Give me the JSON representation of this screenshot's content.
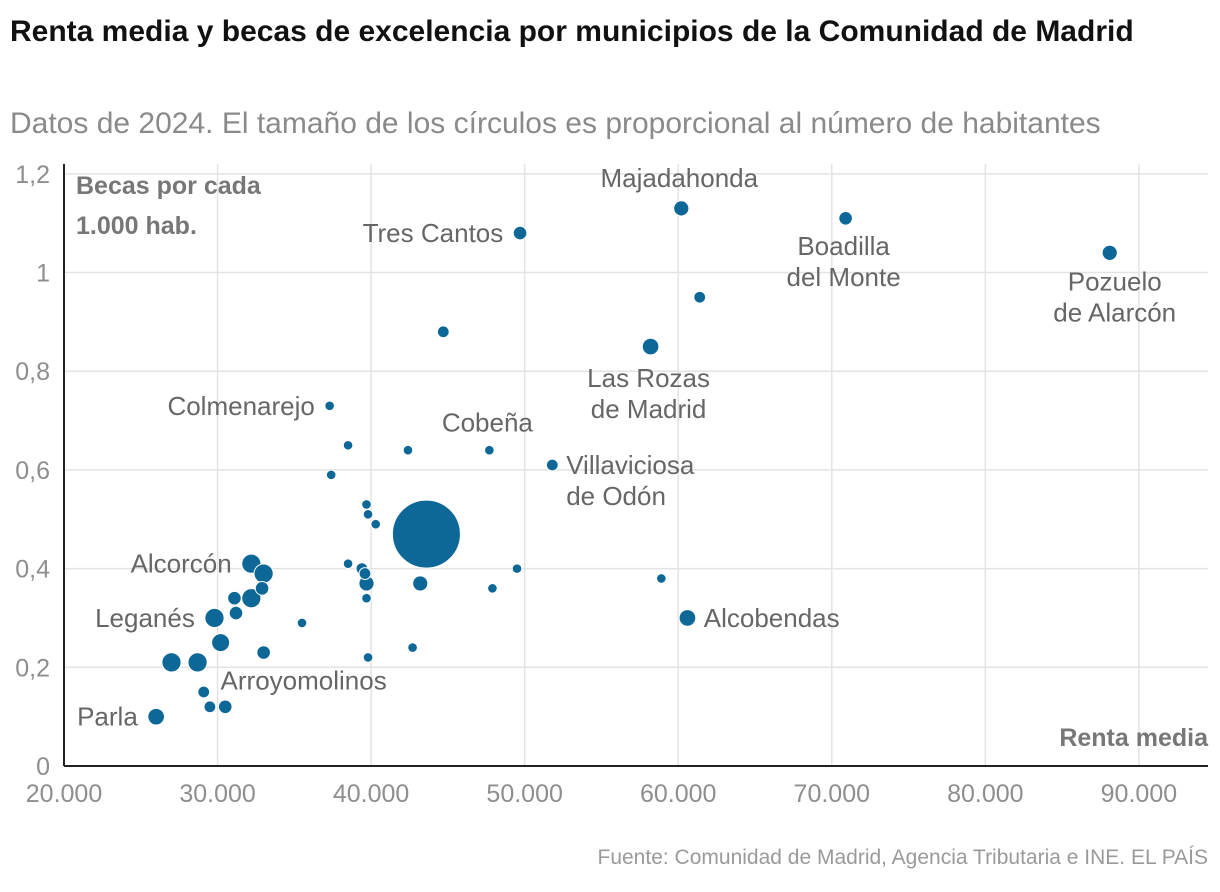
{
  "header": {
    "title": "Renta media y becas de excelencia por municipios de la Comunidad de Madrid",
    "subtitle": "Datos de 2024. El tamaño de los círculos es proporcional al número de habitantes"
  },
  "footer": {
    "source": "Fuente: Comunidad de Madrid, Agencia Tributaria e INE. EL PAÍS"
  },
  "colors": {
    "point": "#0d6797",
    "grid": "#e3e3e3",
    "axis": "#222222"
  },
  "chart_data": {
    "type": "scatter",
    "title": "Renta media y becas de excelencia por municipios de la Comunidad de Madrid",
    "subtitle": "Datos de 2024. El tamaño de los círculos es proporcional al número de habitantes",
    "xlabel": "Renta media",
    "ylabel_lines": [
      "Becas por cada",
      "1.000 hab."
    ],
    "xlim": [
      20000,
      94500
    ],
    "ylim": [
      0,
      1.22
    ],
    "xticks": [
      {
        "value": 20000,
        "label": "20.000"
      },
      {
        "value": 30000,
        "label": "30.000"
      },
      {
        "value": 40000,
        "label": "40.000"
      },
      {
        "value": 50000,
        "label": "50.000"
      },
      {
        "value": 60000,
        "label": "60.000"
      },
      {
        "value": 70000,
        "label": "70.000"
      },
      {
        "value": 80000,
        "label": "80.000"
      },
      {
        "value": 90000,
        "label": "90.000"
      }
    ],
    "yticks": [
      {
        "value": 0,
        "label": "0"
      },
      {
        "value": 0.2,
        "label": "0,2"
      },
      {
        "value": 0.4,
        "label": "0,4"
      },
      {
        "value": 0.6,
        "label": "0,6"
      },
      {
        "value": 0.8,
        "label": "0,8"
      },
      {
        "value": 1,
        "label": "1"
      },
      {
        "value": 1.2,
        "label": "1,2"
      }
    ],
    "grid": true,
    "points": [
      {
        "x": 43600,
        "y": 0.47,
        "pop_rel": 1.0
      },
      {
        "x": 88100,
        "y": 1.04,
        "pop_rel": 0.05,
        "label": "Pozuelo\nde Alarcón",
        "label_pos": "below-right"
      },
      {
        "x": 60200,
        "y": 1.13,
        "pop_rel": 0.05,
        "label": "Majadahonda",
        "label_pos": "above"
      },
      {
        "x": 70900,
        "y": 1.11,
        "pop_rel": 0.04,
        "label": "Boadilla\ndel Monte",
        "label_pos": "below-left"
      },
      {
        "x": 49700,
        "y": 1.08,
        "pop_rel": 0.04,
        "label": "Tres Cantos",
        "label_pos": "left"
      },
      {
        "x": 61400,
        "y": 0.95,
        "pop_rel": 0.03
      },
      {
        "x": 44700,
        "y": 0.88,
        "pop_rel": 0.03
      },
      {
        "x": 58200,
        "y": 0.85,
        "pop_rel": 0.06,
        "label": "Las Rozas\nde Madrid",
        "label_pos": "below"
      },
      {
        "x": 37300,
        "y": 0.73,
        "pop_rel": 0.02,
        "label": "Colmenarejo",
        "label_pos": "left"
      },
      {
        "x": 38500,
        "y": 0.65,
        "pop_rel": 0.02
      },
      {
        "x": 42400,
        "y": 0.64,
        "pop_rel": 0.02
      },
      {
        "x": 47700,
        "y": 0.64,
        "pop_rel": 0.02,
        "label": "Cobeña",
        "label_pos": "above"
      },
      {
        "x": 51800,
        "y": 0.61,
        "pop_rel": 0.03,
        "label": "Villaviciosa\nde Odón",
        "label_pos": "right"
      },
      {
        "x": 37400,
        "y": 0.59,
        "pop_rel": 0.02
      },
      {
        "x": 39700,
        "y": 0.53,
        "pop_rel": 0.02
      },
      {
        "x": 39800,
        "y": 0.51,
        "pop_rel": 0.02
      },
      {
        "x": 40300,
        "y": 0.49,
        "pop_rel": 0.02
      },
      {
        "x": 32200,
        "y": 0.41,
        "pop_rel": 0.08,
        "label": "Alcorcón",
        "label_pos": "left"
      },
      {
        "x": 33000,
        "y": 0.39,
        "pop_rel": 0.08
      },
      {
        "x": 38500,
        "y": 0.41,
        "pop_rel": 0.02
      },
      {
        "x": 39400,
        "y": 0.4,
        "pop_rel": 0.03
      },
      {
        "x": 39600,
        "y": 0.39,
        "pop_rel": 0.03
      },
      {
        "x": 49500,
        "y": 0.4,
        "pop_rel": 0.02
      },
      {
        "x": 58900,
        "y": 0.38,
        "pop_rel": 0.02
      },
      {
        "x": 39700,
        "y": 0.37,
        "pop_rel": 0.05
      },
      {
        "x": 43200,
        "y": 0.37,
        "pop_rel": 0.05
      },
      {
        "x": 32900,
        "y": 0.36,
        "pop_rel": 0.04
      },
      {
        "x": 31100,
        "y": 0.34,
        "pop_rel": 0.04
      },
      {
        "x": 32200,
        "y": 0.34,
        "pop_rel": 0.08
      },
      {
        "x": 39700,
        "y": 0.34,
        "pop_rel": 0.02
      },
      {
        "x": 47900,
        "y": 0.36,
        "pop_rel": 0.02
      },
      {
        "x": 31200,
        "y": 0.31,
        "pop_rel": 0.04
      },
      {
        "x": 29800,
        "y": 0.3,
        "pop_rel": 0.08,
        "label": "Leganés",
        "label_pos": "left"
      },
      {
        "x": 35500,
        "y": 0.29,
        "pop_rel": 0.02
      },
      {
        "x": 60600,
        "y": 0.3,
        "pop_rel": 0.06,
        "label": "Alcobendas",
        "label_pos": "right"
      },
      {
        "x": 30200,
        "y": 0.25,
        "pop_rel": 0.07
      },
      {
        "x": 33000,
        "y": 0.23,
        "pop_rel": 0.04,
        "label": "Arroyomolinos",
        "label_pos": "below-right"
      },
      {
        "x": 42700,
        "y": 0.24,
        "pop_rel": 0.02
      },
      {
        "x": 39800,
        "y": 0.22,
        "pop_rel": 0.02
      },
      {
        "x": 27000,
        "y": 0.21,
        "pop_rel": 0.08
      },
      {
        "x": 28700,
        "y": 0.21,
        "pop_rel": 0.08
      },
      {
        "x": 29100,
        "y": 0.15,
        "pop_rel": 0.03
      },
      {
        "x": 29500,
        "y": 0.12,
        "pop_rel": 0.03
      },
      {
        "x": 30500,
        "y": 0.12,
        "pop_rel": 0.04
      },
      {
        "x": 26000,
        "y": 0.1,
        "pop_rel": 0.06,
        "label": "Parla",
        "label_pos": "left"
      }
    ]
  }
}
